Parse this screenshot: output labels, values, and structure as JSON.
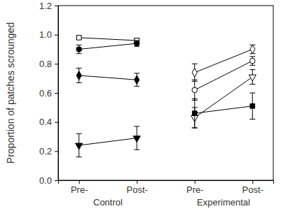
{
  "chart_data": {
    "type": "line",
    "y_label": "Proportion of patches scrounged",
    "categories": [
      "Pre-",
      "Post-",
      "Pre-",
      "Post-"
    ],
    "group_labels": [
      "Control",
      "Experimental"
    ],
    "color": "#000000",
    "ylim": [
      0,
      1.2
    ],
    "yticks": [
      {
        "value": 0,
        "label": "0.0"
      },
      {
        "value": 0.2,
        "label": "0.2"
      },
      {
        "value": 0.4,
        "label": "0.4"
      },
      {
        "value": 0.6,
        "label": "0.6"
      },
      {
        "value": 0.8,
        "label": "0.8"
      },
      {
        "value": 1,
        "label": "1.0"
      },
      {
        "value": 1.2,
        "label": "1.2"
      }
    ],
    "grid": false,
    "series": [
      {
        "marker": "open-square",
        "values": [
          0.98,
          0.96,
          null,
          null
        ],
        "errors": [
          0.01,
          0.015,
          null,
          null
        ]
      },
      {
        "marker": "circle",
        "values": [
          0.9,
          0.94,
          null,
          null
        ],
        "errors": [
          0.03,
          0.02,
          null,
          null
        ]
      },
      {
        "marker": "diamond",
        "values": [
          0.72,
          0.69,
          null,
          null
        ],
        "errors": [
          0.05,
          0.045,
          null,
          null
        ]
      },
      {
        "marker": "triangle-down",
        "values": [
          0.24,
          0.29,
          null,
          null
        ],
        "errors": [
          0.08,
          0.08,
          null,
          null
        ]
      },
      {
        "marker": "open-diamond",
        "values": [
          null,
          null,
          0.74,
          0.9
        ],
        "errors": [
          null,
          null,
          0.06,
          0.03
        ]
      },
      {
        "marker": "open-circle",
        "values": [
          null,
          null,
          0.62,
          0.82
        ],
        "errors": [
          null,
          null,
          0.07,
          0.03
        ]
      },
      {
        "marker": "open-triangle-down",
        "values": [
          null,
          null,
          0.43,
          0.71
        ],
        "errors": [
          null,
          null,
          0.07,
          0.05
        ]
      },
      {
        "marker": "square",
        "values": [
          null,
          null,
          0.46,
          0.51
        ],
        "errors": [
          null,
          null,
          0.1,
          0.09
        ]
      }
    ]
  }
}
